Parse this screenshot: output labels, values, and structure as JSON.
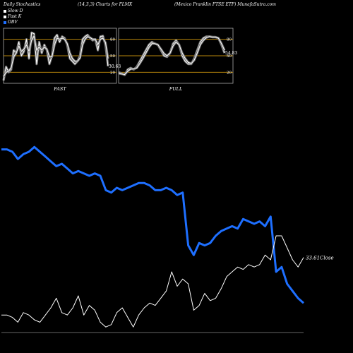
{
  "header": {
    "left": "Daily Stochastics",
    "center": "(14,3,3) Charts for FLMX",
    "right": "(Mexico Franklin FTSE ETF) MunafaSutra.com"
  },
  "legend": [
    {
      "label": "Slow D",
      "color": "#ffffff"
    },
    {
      "label": "Fast K",
      "color": "#ffffff"
    },
    {
      "label": "OBV",
      "color": "#1e6fff"
    }
  ],
  "chart_data": [
    {
      "type": "line",
      "panel": "FAST",
      "title": "FAST",
      "ylim": [
        0,
        100
      ],
      "levels": [
        20,
        50,
        80
      ],
      "level_labels": [
        "20",
        "50",
        "80"
      ],
      "last_value_label": "30.63",
      "series": [
        {
          "name": "Fast K",
          "values": [
            5,
            30,
            20,
            25,
            60,
            55,
            75,
            50,
            58,
            80,
            45,
            92,
            90,
            35,
            75,
            55,
            70,
            60,
            35,
            50,
            82,
            88,
            75,
            85,
            82,
            70,
            45,
            40,
            35,
            40,
            50,
            80,
            85,
            88,
            82,
            78,
            80,
            60,
            85,
            86,
            70,
            31
          ]
        },
        {
          "name": "Slow D",
          "values": [
            12,
            20,
            22,
            28,
            48,
            55,
            68,
            58,
            62,
            70,
            58,
            78,
            86,
            60,
            66,
            60,
            66,
            62,
            48,
            48,
            70,
            82,
            80,
            82,
            80,
            72,
            55,
            45,
            40,
            40,
            46,
            70,
            80,
            85,
            83,
            80,
            80,
            70,
            80,
            82,
            74,
            45
          ]
        }
      ]
    },
    {
      "type": "line",
      "panel": "FULL",
      "title": "FULL",
      "ylim": [
        0,
        100
      ],
      "levels": [
        20,
        50,
        80
      ],
      "level_labels": [
        "20",
        "50",
        "80"
      ],
      "last_value_label": "54.83",
      "series": [
        {
          "name": "Full K",
          "values": [
            20,
            18,
            15,
            25,
            28,
            25,
            30,
            40,
            50,
            60,
            70,
            75,
            72,
            70,
            60,
            50,
            48,
            55,
            72,
            78,
            70,
            50,
            40,
            35,
            35,
            45,
            60,
            75,
            82,
            85,
            85,
            84,
            84,
            82,
            70,
            55
          ]
        },
        {
          "name": "Full D",
          "values": [
            18,
            17,
            16,
            22,
            26,
            26,
            28,
            36,
            45,
            55,
            65,
            72,
            72,
            70,
            62,
            54,
            50,
            55,
            68,
            75,
            70,
            55,
            45,
            38,
            36,
            42,
            55,
            70,
            78,
            83,
            85,
            84,
            84,
            82,
            72,
            60
          ]
        }
      ]
    },
    {
      "type": "line",
      "panel": "main",
      "last_value_label": "33.61",
      "last_value_suffix": "Close",
      "series": [
        {
          "name": "OBV",
          "color": "#1e6fff",
          "values": [
            76,
            76,
            75,
            72,
            74,
            75,
            77,
            75,
            73,
            71,
            69,
            70,
            68,
            66,
            67,
            66,
            65,
            66,
            65,
            59,
            58,
            60,
            59,
            60,
            61,
            62,
            62,
            61,
            59,
            59,
            60,
            59,
            57,
            58,
            36,
            32,
            37,
            36,
            37,
            40,
            42,
            43,
            44,
            43,
            47,
            46,
            45,
            46,
            44,
            48,
            25,
            27,
            20,
            17,
            14,
            12
          ]
        },
        {
          "name": "Close",
          "color": "#ffffff",
          "values": [
            7,
            7,
            6,
            4,
            8,
            7,
            5,
            4,
            7,
            10,
            14,
            8,
            7,
            10,
            15,
            7,
            11,
            9,
            4,
            2,
            3,
            8,
            10,
            6,
            2,
            7,
            10,
            12,
            11,
            14,
            17,
            25,
            19,
            22,
            20,
            9,
            11,
            16,
            13,
            14,
            18,
            23,
            25,
            27,
            26,
            28,
            27,
            28,
            32,
            30,
            40,
            40,
            35,
            30,
            27,
            31
          ]
        }
      ]
    }
  ]
}
